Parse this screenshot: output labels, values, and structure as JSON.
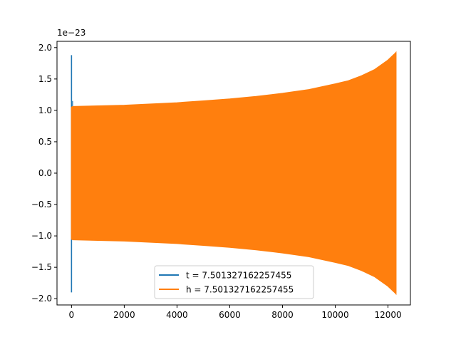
{
  "chart_data": {
    "type": "line",
    "title": "",
    "xlabel": "",
    "ylabel": "",
    "y_offset_label": "1e−23",
    "xlim": [
      -550,
      12850
    ],
    "ylim": [
      -2.1,
      2.1
    ],
    "xticks": [
      0,
      2000,
      4000,
      6000,
      8000,
      10000,
      12000
    ],
    "xtick_labels": [
      "0",
      "2000",
      "4000",
      "6000",
      "8000",
      "10000",
      "12000"
    ],
    "yticks": [
      2.0,
      1.5,
      1.0,
      0.5,
      0.0,
      -0.5,
      -1.0,
      -1.5,
      -2.0
    ],
    "ytick_labels": [
      "2.0",
      "1.5",
      "1.0",
      "0.5",
      "0.0",
      "−0.5",
      "−1.0",
      "−1.5",
      "−2.0"
    ],
    "grid": false,
    "legend_position": "lower center",
    "series": [
      {
        "name": "t = 7.501327162257455",
        "color": "#1f77b4",
        "description_points": [
          [
            0,
            -1.9
          ],
          [
            0,
            1.88
          ],
          [
            0,
            1.15
          ],
          [
            5,
            -1.9
          ],
          [
            5,
            1.05
          ]
        ],
        "x": [
          0,
          0,
          0,
          5,
          5
        ],
        "y": [
          -1.9,
          1.88,
          1.15,
          -1.9,
          1.05
        ]
      },
      {
        "name": "h = 7.501327162257455",
        "color": "#ff7f0e",
        "envelope_x": [
          0,
          50,
          1000,
          2000,
          3000,
          4000,
          5000,
          6000,
          7000,
          8000,
          9000,
          10000,
          10500,
          11000,
          11500,
          11800,
          12000,
          12200,
          12280,
          12300
        ],
        "envelope_upper": [
          1.05,
          1.06,
          1.07,
          1.08,
          1.1,
          1.12,
          1.15,
          1.18,
          1.22,
          1.27,
          1.33,
          1.42,
          1.47,
          1.55,
          1.65,
          1.74,
          1.8,
          1.88,
          1.91,
          1.92
        ],
        "envelope_lower": [
          -1.05,
          -1.06,
          -1.07,
          -1.08,
          -1.1,
          -1.12,
          -1.15,
          -1.18,
          -1.22,
          -1.27,
          -1.33,
          -1.42,
          -1.47,
          -1.55,
          -1.65,
          -1.74,
          -1.8,
          -1.88,
          -1.91,
          -1.92
        ]
      }
    ]
  }
}
